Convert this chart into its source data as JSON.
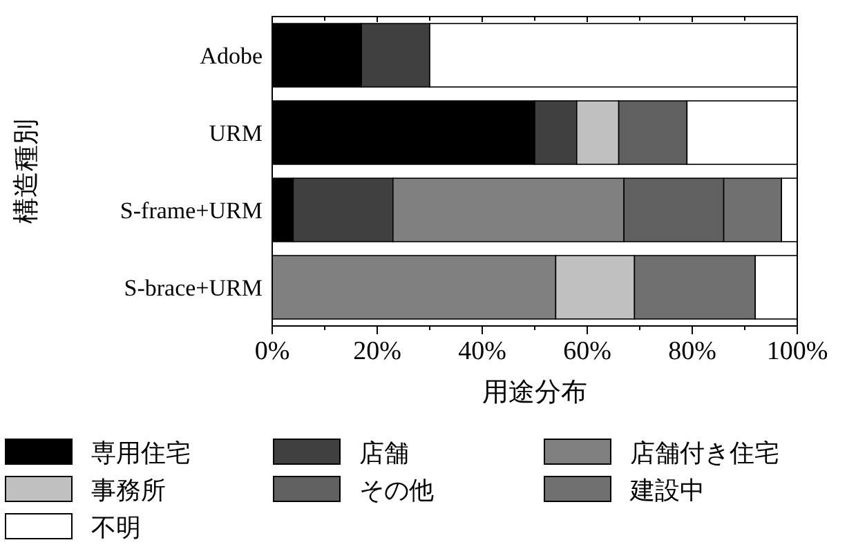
{
  "chart_data": {
    "type": "bar",
    "orientation": "horizontal",
    "stacked": true,
    "xlabel": "用途分布",
    "ylabel": "構造種別",
    "categories": [
      "Adobe",
      "URM",
      "S-frame+URM",
      "S-brace+URM"
    ],
    "xlim": [
      0,
      100
    ],
    "xticks": [
      {
        "value": 0,
        "label": "0%"
      },
      {
        "value": 20,
        "label": "20%"
      },
      {
        "value": 40,
        "label": "40%"
      },
      {
        "value": 60,
        "label": "60%"
      },
      {
        "value": 80,
        "label": "80%"
      },
      {
        "value": 100,
        "label": "100%"
      }
    ],
    "legend": "bottom",
    "grid": false,
    "series": [
      {
        "name": "専用住宅",
        "color": "#000000",
        "values": [
          17,
          50,
          4,
          0
        ]
      },
      {
        "name": "店舗",
        "color": "#404040",
        "values": [
          13,
          8,
          19,
          0
        ]
      },
      {
        "name": "店舗付き住宅",
        "color": "#808080",
        "values": [
          0,
          0,
          44,
          54
        ]
      },
      {
        "name": "事務所",
        "color": "#c0c0c0",
        "values": [
          0,
          8,
          0,
          15
        ]
      },
      {
        "name": "その他",
        "color": "#606060",
        "values": [
          0,
          13,
          19,
          0
        ]
      },
      {
        "name": "建設中",
        "color": "#707070",
        "values": [
          0,
          0,
          11,
          23
        ]
      },
      {
        "name": "不明",
        "color": "#ffffff",
        "values": [
          70,
          21,
          3,
          8
        ]
      }
    ]
  }
}
